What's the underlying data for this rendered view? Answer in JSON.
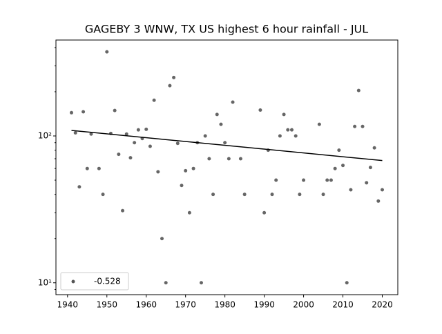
{
  "chart_data": {
    "type": "scatter",
    "title": "GAGEBY 3 WNW, TX US highest 6 hour rainfall - JUL",
    "log_y": true,
    "xlim": [
      1937.05,
      2023.95
    ],
    "ylim": [
      8.3,
      450
    ],
    "xticks": [
      1940,
      1950,
      1960,
      1970,
      1980,
      1990,
      2000,
      2010,
      2020
    ],
    "yticks": [
      {
        "value": 10,
        "label": "10¹"
      },
      {
        "value": 100,
        "label": "10²"
      }
    ],
    "yminorticks": [
      9,
      20,
      30,
      40,
      50,
      60,
      70,
      80,
      90,
      200,
      300,
      400
    ],
    "legend": "lower left",
    "series": [
      {
        "name": "-0.528",
        "color": "#555555",
        "x": [
          1941,
          1942,
          1943,
          1944,
          1945,
          1946,
          1948,
          1949,
          1950,
          1951,
          1952,
          1953,
          1954,
          1955,
          1956,
          1957,
          1958,
          1959,
          1960,
          1961,
          1962,
          1963,
          1964,
          1965,
          1966,
          1967,
          1968,
          1969,
          1970,
          1971,
          1972,
          1973,
          1974,
          1975,
          1976,
          1977,
          1978,
          1979,
          1980,
          1981,
          1982,
          1984,
          1985,
          1989,
          1990,
          1991,
          1992,
          1993,
          1994,
          1995,
          1996,
          1997,
          1998,
          1999,
          2000,
          2004,
          2005,
          2006,
          2007,
          2008,
          2009,
          2010,
          2011,
          2012,
          2013,
          2014,
          2015,
          2016,
          2017,
          2018,
          2019,
          2020
        ],
        "values": [
          144,
          105,
          45,
          146,
          60,
          103,
          60,
          40,
          374,
          104,
          149,
          75,
          31,
          103,
          71,
          90,
          110,
          96,
          111,
          85,
          175,
          57,
          20,
          10,
          220,
          250,
          89,
          46,
          58,
          30,
          60,
          90,
          10,
          100,
          70,
          40,
          140,
          120,
          90,
          70,
          170,
          70,
          40,
          150,
          30,
          80,
          40,
          50,
          100,
          140,
          110,
          110,
          100,
          40,
          50,
          120,
          40,
          50,
          50,
          60,
          80,
          63,
          10,
          43,
          116,
          204,
          116,
          48,
          61,
          83,
          36,
          43
        ]
      }
    ],
    "trend": {
      "color": "#000000",
      "x": [
        1941,
        2020
      ],
      "values": [
        109,
        68
      ]
    }
  }
}
